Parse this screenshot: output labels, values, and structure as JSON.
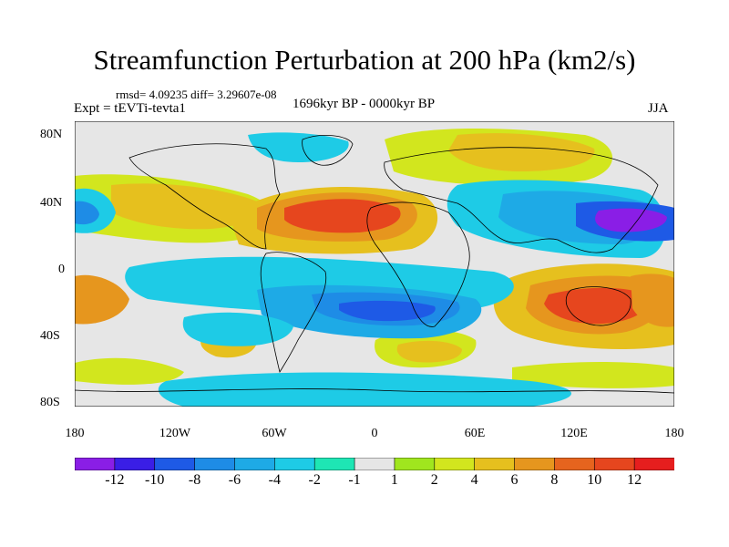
{
  "title": "Streamfunction Perturbation at 200 hPa (km2/s)",
  "stats_line": "rmsd= 4.09235 diff= 3.29607e-08",
  "experiment": "Expt = tEVTi-tevta1",
  "period": "1696kyr BP - 0000kyr BP",
  "season": "JJA",
  "lat_labels": [
    "80N",
    "40N",
    "0",
    "40S",
    "80S"
  ],
  "lon_labels": [
    "180",
    "120W",
    "60W",
    "0",
    "60E",
    "120E",
    "180"
  ],
  "colorbar": {
    "labels": [
      "-12",
      "-10",
      "-8",
      "-6",
      "-4",
      "-2",
      "-1",
      "1",
      "2",
      "4",
      "6",
      "8",
      "10",
      "12"
    ],
    "colors": [
      "#8a1ee6",
      "#3a1ee6",
      "#1e5ae6",
      "#1e8ce6",
      "#1eaae6",
      "#1ecbe6",
      "#1ee6b4",
      "#e6e6e6",
      "#a0e61e",
      "#d2e61e",
      "#e6c01e",
      "#e6961e",
      "#e6641e",
      "#e6461e",
      "#e61e1e"
    ]
  },
  "map_data": {
    "projection": "cylindrical-equidistant",
    "lon_range": [
      -180,
      180
    ],
    "lat_range": [
      -90,
      90
    ],
    "field": "streamfunction anomaly",
    "features": [
      {
        "name": "North Africa high",
        "lon": -20,
        "lat": 28,
        "value": 12
      },
      {
        "name": "NW Pacific low",
        "lon": 150,
        "lat": 28,
        "value": -12
      },
      {
        "name": "Australia high",
        "lon": 110,
        "lat": -25,
        "value": 11
      },
      {
        "name": "South Atlantic low",
        "lon": 5,
        "lat": -25,
        "value": -10
      },
      {
        "name": "South Pacific high",
        "lon": -180,
        "lat": -18,
        "value": 8
      },
      {
        "name": "North America high",
        "lon": -110,
        "lat": 35,
        "value": 6
      },
      {
        "name": "Siberia high",
        "lon": 60,
        "lat": 65,
        "value": 4
      },
      {
        "name": "East Pacific low",
        "lon": -170,
        "lat": 32,
        "value": -7
      }
    ]
  }
}
